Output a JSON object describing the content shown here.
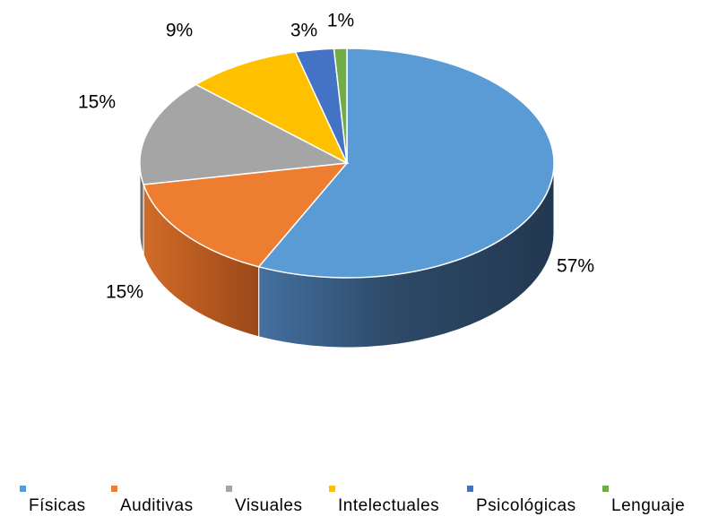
{
  "chart_data": {
    "type": "pie",
    "categories": [
      "Físicas",
      "Auditivas",
      "Visuales",
      "Intelectuales",
      "Psicológicas",
      "Lenguaje"
    ],
    "values": [
      57,
      15,
      15,
      9,
      3,
      1
    ],
    "value_labels": [
      "57%",
      "15%",
      "15%",
      "9%",
      "3%",
      "1%"
    ],
    "colors": [
      "#5B9BD5",
      "#ED7D31",
      "#A5A5A5",
      "#FFC000",
      "#4472C4",
      "#70AD47"
    ],
    "side_colors": [
      "#2E4F6E",
      "#9E4F1C",
      "#6E6E6E",
      "#A37A00",
      "#263F6E",
      "#456B2C"
    ],
    "style": "3d",
    "legend_position": "bottom"
  }
}
